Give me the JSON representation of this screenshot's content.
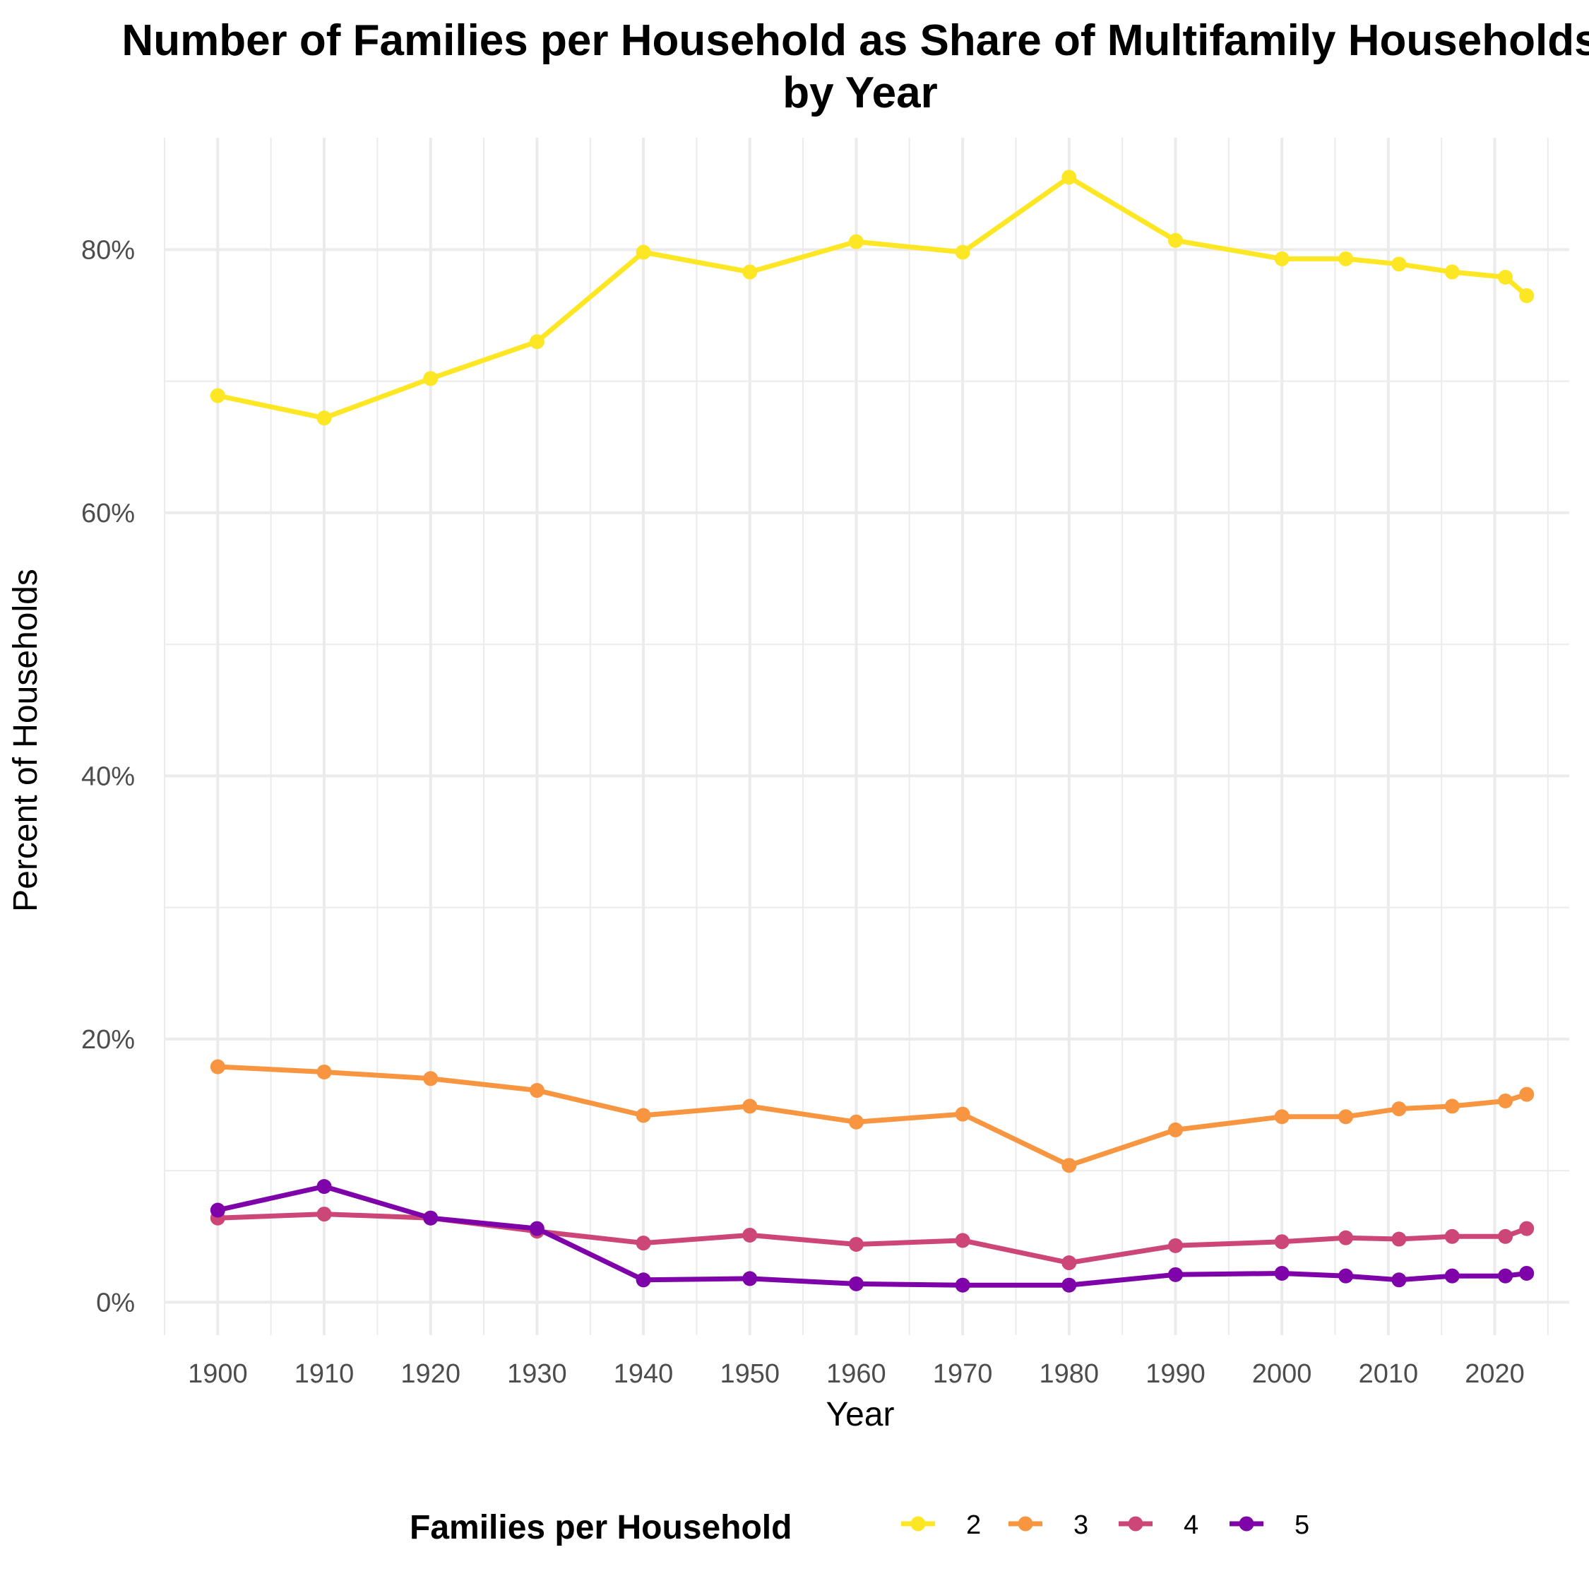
{
  "chart_data": {
    "type": "line",
    "title": "Number of Families per Household as Share of Multifamily Households by Year",
    "title_lines": [
      "Number of Families per Household as Share of Multifamily Households",
      "by Year"
    ],
    "xlabel": "Year",
    "ylabel": "Percent of Households",
    "xlim": [
      1895.0,
      2027.0
    ],
    "ylim": [
      -2.5,
      88.5
    ],
    "x_ticks": [
      1900,
      1910,
      1920,
      1930,
      1940,
      1950,
      1960,
      1970,
      1980,
      1990,
      2000,
      2010,
      2020
    ],
    "x_tick_labels": [
      "1900",
      "1910",
      "1920",
      "1930",
      "1940",
      "1950",
      "1960",
      "1970",
      "1980",
      "1990",
      "2000",
      "2010",
      "2020"
    ],
    "y_ticks": [
      0,
      20,
      40,
      60,
      80
    ],
    "y_tick_labels": [
      "0%",
      "20%",
      "40%",
      "60%",
      "80%"
    ],
    "grid": true,
    "legend": {
      "title": "Families per Household",
      "position": "bottom"
    },
    "x": [
      1900,
      1910,
      1920,
      1930,
      1940,
      1950,
      1960,
      1970,
      1980,
      1990,
      2000,
      2006,
      2011,
      2016,
      2021,
      2023
    ],
    "series": [
      {
        "name": "2",
        "color": "#fde725",
        "values": [
          68.9,
          67.2,
          70.2,
          73.0,
          79.8,
          78.3,
          80.6,
          79.8,
          85.5,
          80.7,
          79.3,
          79.3,
          78.9,
          78.3,
          77.9,
          76.5
        ]
      },
      {
        "name": "3",
        "color": "#f89540",
        "values": [
          17.9,
          17.5,
          17.0,
          16.1,
          14.2,
          14.9,
          13.7,
          14.3,
          10.4,
          13.1,
          14.1,
          14.1,
          14.7,
          14.9,
          15.3,
          15.8
        ]
      },
      {
        "name": "4",
        "color": "#cc4778",
        "values": [
          6.4,
          6.7,
          6.4,
          5.4,
          4.5,
          5.1,
          4.4,
          4.7,
          3.0,
          4.3,
          4.6,
          4.9,
          4.8,
          5.0,
          5.0,
          5.6
        ]
      },
      {
        "name": "5",
        "color": "#7e03a8",
        "values": [
          7.0,
          8.8,
          6.4,
          5.6,
          1.7,
          1.8,
          1.4,
          1.3,
          1.3,
          2.1,
          2.2,
          2.0,
          1.7,
          2.0,
          2.0,
          2.2
        ]
      }
    ]
  }
}
